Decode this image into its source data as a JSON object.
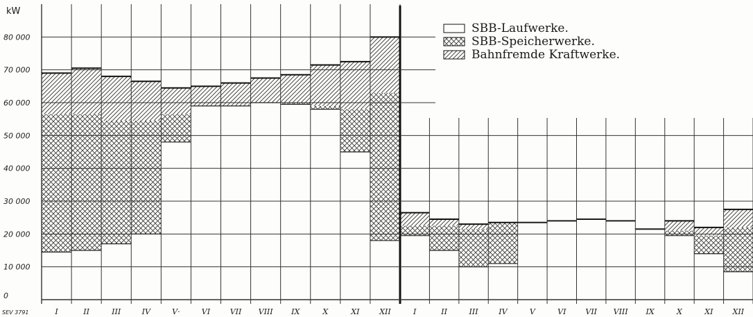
{
  "chart_data": {
    "type": "area",
    "title": "",
    "ylabel": "kW",
    "ylim": [
      0,
      90000
    ],
    "yticks": [
      0,
      10000,
      20000,
      30000,
      40000,
      50000,
      60000,
      70000,
      80000
    ],
    "ytick_labels": [
      "0",
      "10 000",
      "20 000",
      "30 000",
      "40 000",
      "50 000",
      "60 000",
      "70 000",
      "80 000"
    ],
    "categories": [
      "I",
      "II",
      "III",
      "IV",
      "V·",
      "VI",
      "VII",
      "VIII",
      "IX",
      "X",
      "XI",
      "XII",
      "I",
      "II",
      "III",
      "IV",
      "V",
      "VI",
      "VII",
      "VIII",
      "IX",
      "X",
      "XI",
      "XII"
    ],
    "grid": true,
    "legend": "top-right",
    "reference_label": "SEV 3791",
    "series": [
      {
        "name": "SBB-Laufwerke.",
        "pattern": "blank",
        "panel1_values": [
          14500,
          15000,
          17000,
          20000,
          48000,
          59000,
          59000,
          60000,
          59500,
          58000,
          45000,
          18000
        ],
        "panel2_values": [
          19500,
          15000,
          10000,
          11000,
          23500,
          24000,
          24500,
          24000,
          21500,
          19500,
          14000,
          8500
        ]
      },
      {
        "name": "SBB-Speicherwerke.",
        "pattern": "cross-hatch",
        "panel1_values": [
          42000,
          41500,
          37500,
          34500,
          8500,
          0,
          0,
          0,
          500,
          1000,
          13000,
          45000
        ],
        "panel2_values": [
          3000,
          7500,
          11500,
          12500,
          0,
          0,
          0,
          0,
          0,
          1500,
          5500,
          13500
        ]
      },
      {
        "name": "Bahnfremde Kraftwerke.",
        "pattern": "diagonal-hatch",
        "panel1_values": [
          12500,
          14000,
          13500,
          12000,
          8000,
          6000,
          7000,
          7500,
          8500,
          12500,
          14500,
          17000
        ],
        "panel2_values": [
          4000,
          2000,
          1500,
          0,
          0,
          0,
          0,
          0,
          0,
          3000,
          2500,
          5500
        ]
      }
    ]
  }
}
